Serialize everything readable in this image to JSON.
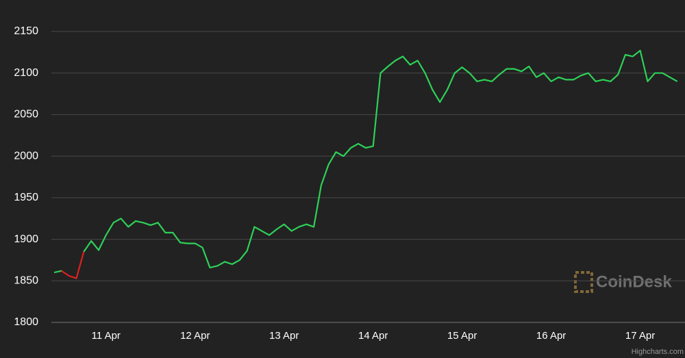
{
  "chart_data": {
    "type": "line",
    "categories": [
      null,
      null,
      null,
      null,
      null,
      null,
      null,
      "11 Apr",
      null,
      null,
      null,
      null,
      null,
      null,
      null,
      null,
      null,
      null,
      null,
      "12 Apr",
      null,
      null,
      null,
      null,
      null,
      null,
      null,
      null,
      null,
      null,
      null,
      "13 Apr",
      null,
      null,
      null,
      null,
      null,
      null,
      null,
      null,
      null,
      null,
      null,
      "14 Apr",
      null,
      null,
      null,
      null,
      null,
      null,
      null,
      null,
      null,
      null,
      null,
      "15 Apr",
      null,
      null,
      null,
      null,
      null,
      null,
      null,
      null,
      null,
      null,
      null,
      "16 Apr",
      null,
      null,
      null,
      null,
      null,
      null,
      null,
      null,
      null,
      null,
      null,
      "17 Apr",
      null,
      null,
      null,
      null,
      null
    ],
    "series": [
      {
        "color": "#2ed158",
        "negative_color": "#e0201e",
        "values": [
          1860,
          1862,
          1856,
          1853,
          1885,
          1898,
          1887,
          1905,
          1920,
          1925,
          1915,
          1922,
          1920,
          1917,
          1920,
          1908,
          1908,
          1896,
          1895,
          1895,
          1890,
          1866,
          1868,
          1873,
          1870,
          1875,
          1886,
          1915,
          1910,
          1905,
          1912,
          1918,
          1910,
          1915,
          1918,
          1915,
          1965,
          1990,
          2005,
          2000,
          2010,
          2015,
          2010,
          2012,
          2100,
          2108,
          2115,
          2120,
          2110,
          2115,
          2100,
          2080,
          2065,
          2080,
          2100,
          2107,
          2100,
          2090,
          2092,
          2090,
          2098,
          2105,
          2105,
          2102,
          2108,
          2095,
          2100,
          2090,
          2095,
          2092,
          2092,
          2097,
          2100,
          2090,
          2092,
          2090,
          2098,
          2122,
          2120,
          2127,
          2090,
          2100,
          2100,
          2095,
          2090
        ]
      }
    ],
    "ylim": [
      1800,
      2150
    ],
    "yticks": [
      1800,
      1850,
      1900,
      1950,
      2000,
      2050,
      2100,
      2150
    ],
    "grid": true,
    "watermark": "CoinDesk",
    "credit": "Highcharts.com"
  }
}
